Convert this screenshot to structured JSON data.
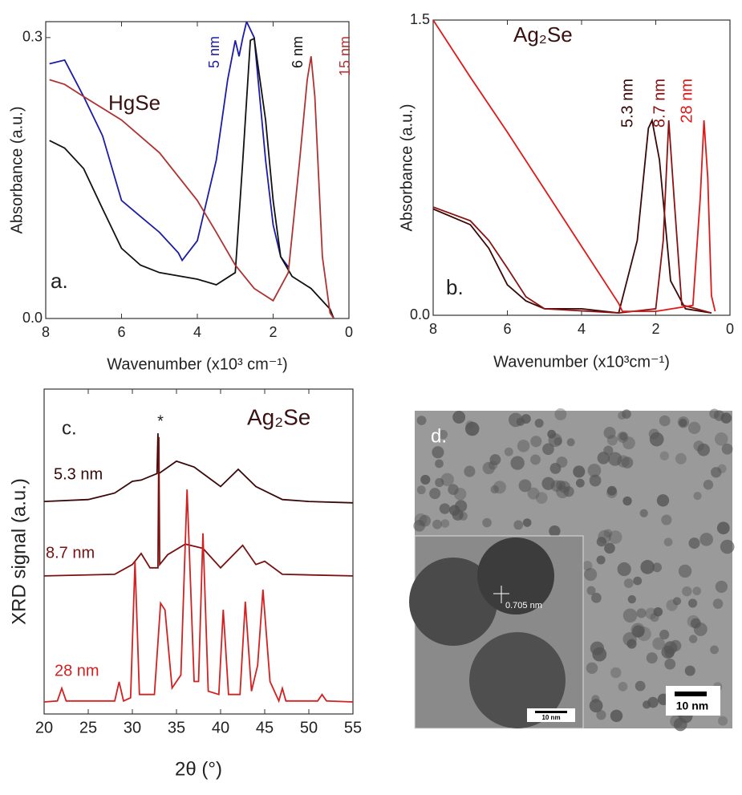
{
  "chart_data": [
    {
      "type": "line",
      "panel_label": "a.",
      "material": "HgSe",
      "xlabel": "Wavenumber (x10³ cm⁻¹)",
      "ylabel": "Absorbance (a.u.)",
      "xlim": [
        8,
        0
      ],
      "xticks": [
        8,
        6,
        4,
        2,
        0
      ],
      "ylim": [
        0,
        0.317
      ],
      "yticks": [
        {
          "value": 0,
          "label": "0.0"
        },
        {
          "value": 0.3,
          "label": "0.3"
        }
      ],
      "series": [
        {
          "name": "5 nm",
          "color": "#1c1ca8",
          "x": [
            7.9,
            7.5,
            7.0,
            6.5,
            6.0,
            5.5,
            5.0,
            4.5,
            4.4,
            4.0,
            3.5,
            3.2,
            3.0,
            2.9,
            2.8,
            2.7,
            2.5,
            2.2,
            2.0,
            1.8,
            1.6
          ],
          "values": [
            0.272,
            0.276,
            0.237,
            0.195,
            0.126,
            0.109,
            0.092,
            0.07,
            0.062,
            0.083,
            0.169,
            0.255,
            0.297,
            0.28,
            0.3,
            0.317,
            0.3,
            0.169,
            0.1,
            0.066,
            0.055
          ]
        },
        {
          "name": "6 nm",
          "color": "#111111",
          "x": [
            7.9,
            7.5,
            7.0,
            6.5,
            6.0,
            5.5,
            5.0,
            4.0,
            3.5,
            3.0,
            2.8,
            2.6,
            2.5,
            2.2,
            2.0,
            1.8,
            1.5,
            1.0,
            0.5,
            0.4
          ],
          "values": [
            0.19,
            0.182,
            0.16,
            0.117,
            0.075,
            0.057,
            0.049,
            0.042,
            0.036,
            0.049,
            0.169,
            0.297,
            0.299,
            0.212,
            0.126,
            0.066,
            0.045,
            0.032,
            0.01,
            0
          ]
        },
        {
          "name": "15 nm",
          "color": "#b03232",
          "x": [
            7.9,
            7.5,
            7.0,
            6.0,
            5.0,
            4.0,
            3.5,
            3.0,
            2.5,
            2.0,
            1.6,
            1.3,
            1.1,
            1.0,
            0.9,
            0.7,
            0.5,
            0.4
          ],
          "values": [
            0.255,
            0.25,
            0.237,
            0.212,
            0.177,
            0.126,
            0.092,
            0.057,
            0.032,
            0.019,
            0.049,
            0.169,
            0.255,
            0.28,
            0.237,
            0.066,
            0.006,
            0
          ]
        }
      ]
    },
    {
      "type": "line",
      "panel_label": "b.",
      "material": "Ag₂Se",
      "xlabel": "Wavenumber (x10³cm⁻¹)",
      "ylabel": "Absorbance (a.u.)",
      "xlim": [
        8,
        0
      ],
      "xticks": [
        8,
        6,
        4,
        2,
        0
      ],
      "ylim": [
        0,
        1.5
      ],
      "yticks": [
        {
          "value": 0,
          "label": "0.0"
        },
        {
          "value": 1.5,
          "label": "1.5"
        }
      ],
      "series": [
        {
          "name": "5.3 nm",
          "color": "#3a0808",
          "x": [
            8,
            7,
            6.5,
            6,
            5.5,
            5,
            4,
            3,
            2.5,
            2.2,
            2.1,
            1.9,
            1.6,
            1.2,
            0.5
          ],
          "values": [
            0.54,
            0.46,
            0.34,
            0.155,
            0.073,
            0.033,
            0.033,
            0.012,
            0.38,
            0.95,
            0.99,
            0.79,
            0.175,
            0.033,
            0.012
          ]
        },
        {
          "name": "8.7 nm",
          "color": "#8b1212",
          "x": [
            8,
            7,
            6.5,
            6,
            5.5,
            5,
            3,
            2,
            1.8,
            1.65,
            1.5,
            1.3,
            0.5
          ],
          "values": [
            0.55,
            0.48,
            0.38,
            0.24,
            0.094,
            0.033,
            0.012,
            0.033,
            0.38,
            0.99,
            0.58,
            0.053,
            0.012
          ]
        },
        {
          "name": "28 nm",
          "color": "#e01818",
          "x": [
            8,
            7,
            6,
            5,
            4,
            3,
            2.9,
            2,
            1,
            0.8,
            0.7,
            0.6,
            0.5,
            0.4
          ],
          "values": [
            1.5,
            1.21,
            0.93,
            0.64,
            0.35,
            0.06,
            0.02,
            0.02,
            0.05,
            0.6,
            0.99,
            0.7,
            0.1,
            0.02
          ]
        }
      ]
    },
    {
      "type": "line",
      "panel_label": "c.",
      "material": "Ag₂Se",
      "marker": "*",
      "xlabel": "2θ (°)",
      "ylabel": "XRD signal (a.u.)",
      "xlim": [
        20,
        55
      ],
      "xticks": [
        20,
        25,
        30,
        35,
        40,
        45,
        50,
        55
      ],
      "ylim": [
        0,
        10
      ],
      "series": [
        {
          "name": "5.3 nm",
          "color": "#3a0808",
          "x": [
            20,
            25,
            28,
            30,
            31,
            32.8,
            32.9,
            33.0,
            35,
            37,
            40,
            42,
            44,
            47,
            50,
            55
          ],
          "values": [
            6.54,
            6.6,
            6.8,
            7.16,
            7.2,
            7.4,
            8.64,
            7.4,
            7.78,
            7.6,
            7.0,
            7.53,
            7.0,
            6.6,
            6.54,
            6.5
          ]
        },
        {
          "name": "8.7 nm",
          "color": "#7a1010",
          "x": [
            20,
            28,
            30,
            31,
            32,
            32.9,
            33.0,
            33.1,
            34,
            36,
            38,
            40,
            42.5,
            44,
            45,
            47,
            55
          ],
          "values": [
            4.25,
            4.3,
            4.6,
            4.94,
            4.5,
            4.5,
            8.52,
            4.6,
            4.9,
            5.23,
            5.1,
            4.5,
            5.19,
            4.6,
            4.7,
            4.3,
            4.25
          ]
        },
        {
          "name": "28 nm",
          "color": "#d42020",
          "x": [
            20,
            21.5,
            22,
            22.5,
            28,
            28.5,
            29,
            29.8,
            30.3,
            30.8,
            32.5,
            33.2,
            33.7,
            34.5,
            35.5,
            36.2,
            37,
            37.5,
            38,
            38.6,
            39.8,
            40.3,
            40.9,
            42.2,
            42.8,
            43.5,
            44.2,
            44.8,
            45.6,
            46.6,
            47,
            47.4,
            51,
            51.5,
            52,
            55
          ],
          "values": [
            0.37,
            0.4,
            0.79,
            0.4,
            0.4,
            0.99,
            0.4,
            0.5,
            4.69,
            0.6,
            0.6,
            3.41,
            3.2,
            0.8,
            1.2,
            6.91,
            1.0,
            1.0,
            5.56,
            0.7,
            0.6,
            3.21,
            0.6,
            0.6,
            3.46,
            0.7,
            1.5,
            3.83,
            1.0,
            0.4,
            0.79,
            0.4,
            0.4,
            0.6,
            0.4,
            0.37
          ]
        }
      ]
    }
  ],
  "micrograph": {
    "panel_label": "d.",
    "scale_bar": "10 nm",
    "inset_scale_bar": "10 nm",
    "inset_annotation": "0.705 nm"
  }
}
